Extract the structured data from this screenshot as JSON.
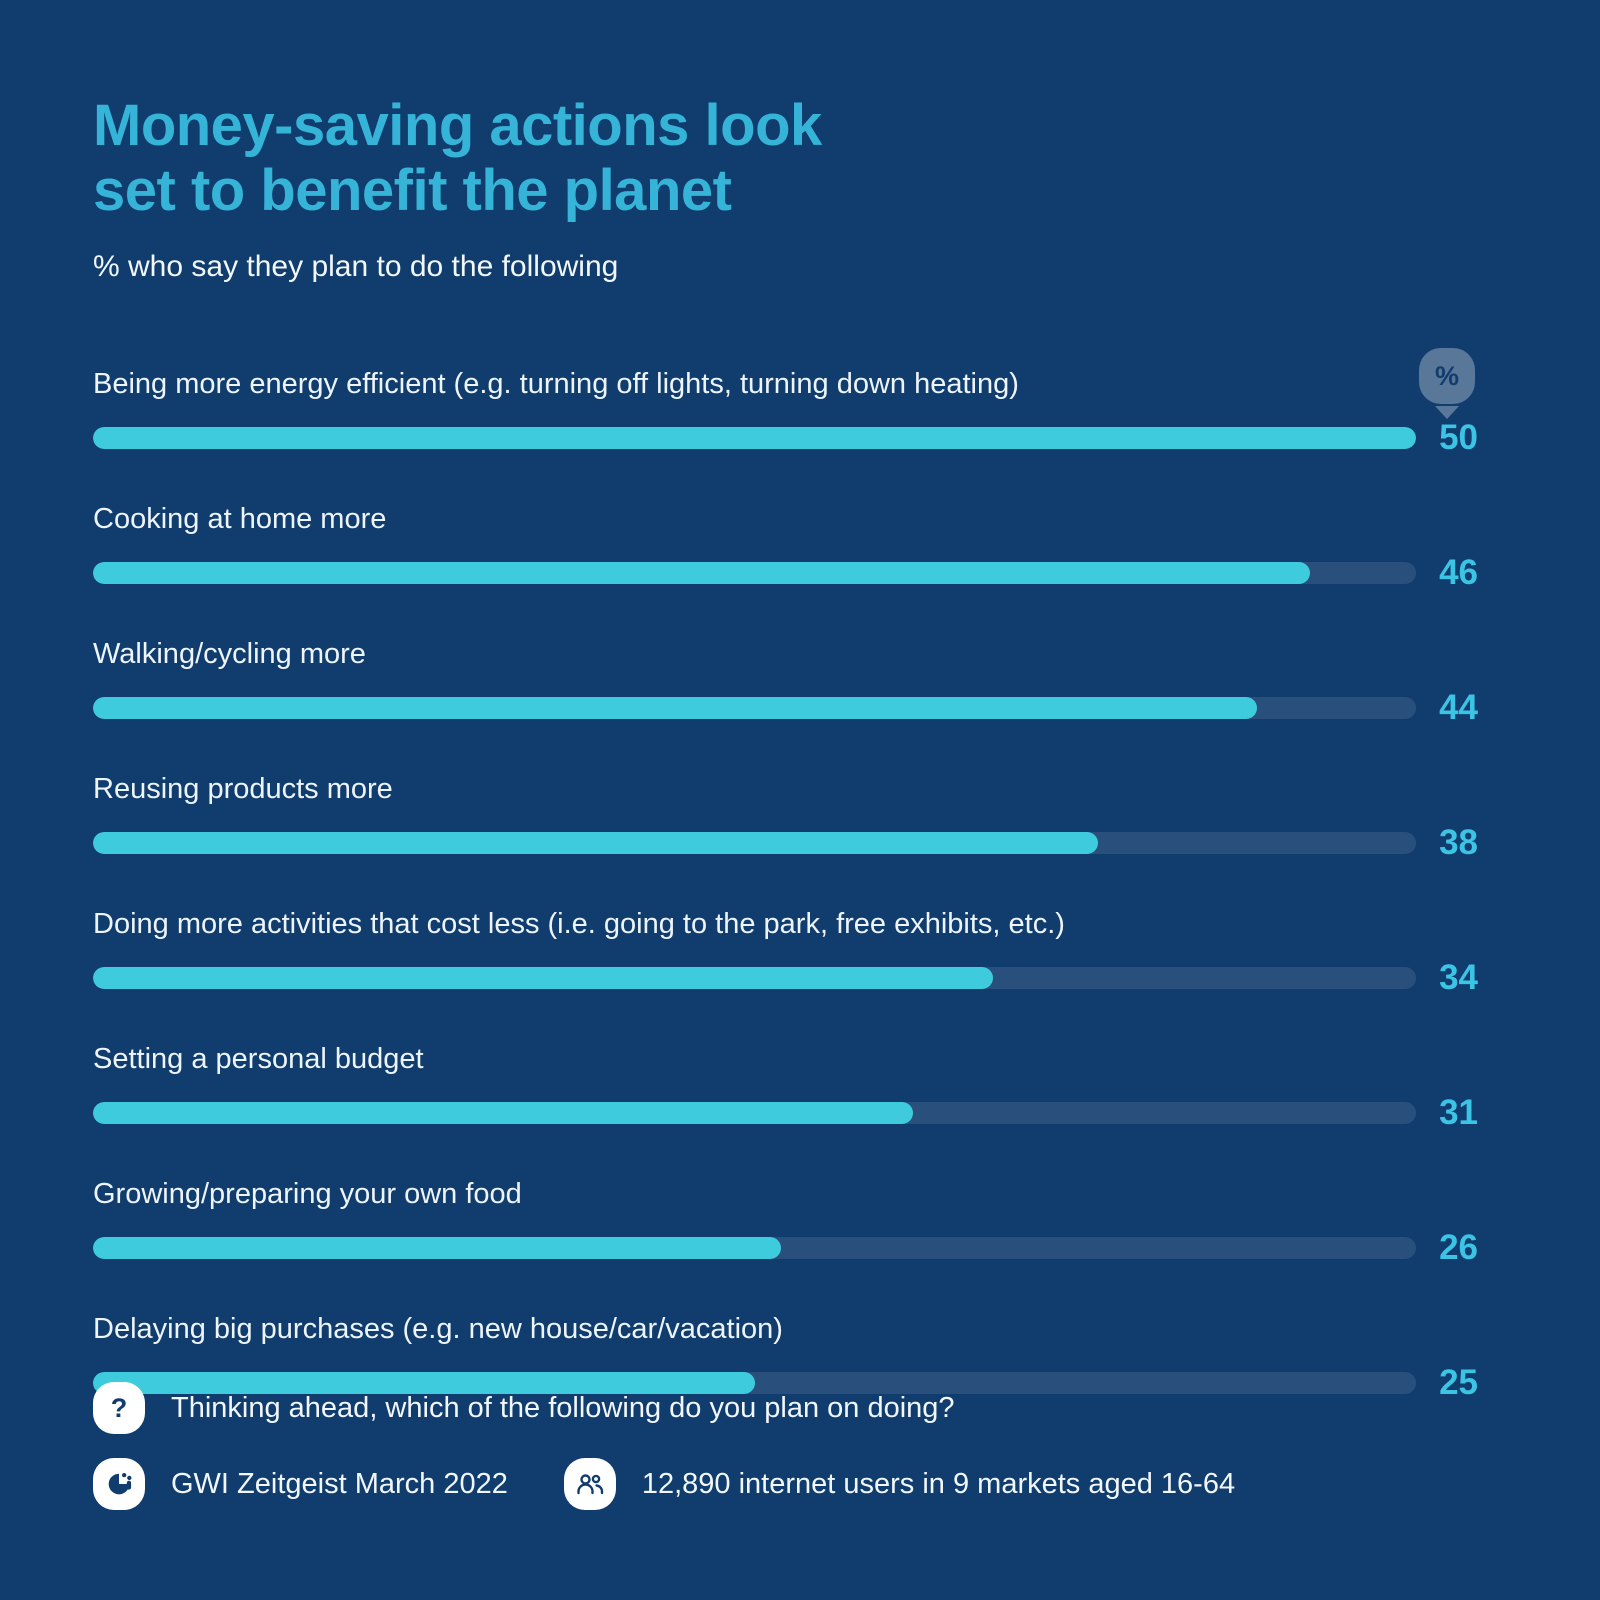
{
  "header": {
    "title_line1": "Money-saving actions look",
    "title_line2": "set to benefit the planet",
    "subtitle": "% who say they plan to do the following"
  },
  "chart_data": {
    "type": "bar",
    "orientation": "horizontal",
    "title": "Money-saving actions look set to benefit the planet",
    "subtitle": "% who say they plan to do the following",
    "unit": "%",
    "value_axis_max": 50,
    "grid": false,
    "legend": "none",
    "value_labels_shown": true,
    "categories": [
      "Being more energy efficient (e.g. turning off lights, turning down heating)",
      "Cooking at home more",
      "Walking/cycling more",
      "Reusing products more",
      "Doing more activities that cost less (i.e. going to the park, free exhibits, etc.)",
      "Setting a personal budget",
      "Growing/preparing your own food",
      "Delaying big purchases (e.g. new house/car/vacation)"
    ],
    "values": [
      50,
      46,
      44,
      38,
      34,
      31,
      26,
      25
    ],
    "colors": {
      "background": "#113D6E",
      "title_text": "#35B4D8",
      "label_text": "#EDF4FA",
      "bar_fill": "#3ECBDE",
      "bar_track": "rgba(255,255,255,0.10)",
      "value_text": "#3CC4E4",
      "percent_pin": "rgba(255,255,255,0.30)"
    }
  },
  "icons": {
    "percent_pin_glyph": "%",
    "question_glyph": "?",
    "logo_name": "gwi-logo",
    "users_name": "two-people"
  },
  "footer": {
    "question": "Thinking ahead, which of the following do you plan on doing?",
    "source": "GWI Zeitgeist March 2022",
    "sample": "12,890 internet users in 9 markets aged 16-64"
  }
}
